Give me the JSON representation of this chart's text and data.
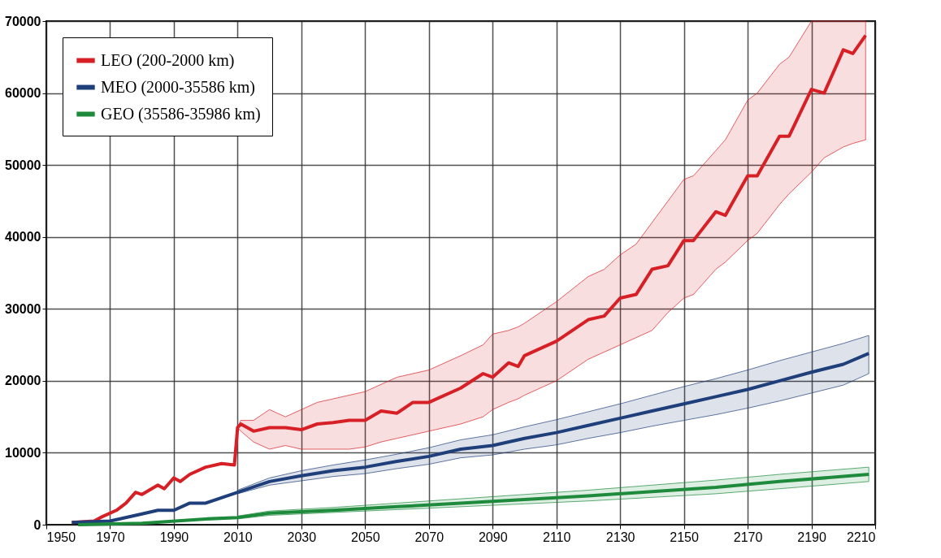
{
  "chart_data": {
    "type": "line",
    "xlim": [
      1950,
      2210
    ],
    "ylim": [
      0,
      70000
    ],
    "xticks": [
      1950,
      1970,
      1990,
      2010,
      2030,
      2050,
      2070,
      2090,
      2110,
      2130,
      2150,
      2170,
      2190,
      2210
    ],
    "yticks": [
      0,
      10000,
      20000,
      30000,
      40000,
      50000,
      60000,
      70000
    ],
    "grid": true,
    "legend": "top left",
    "line_style": "solid",
    "marker": "none",
    "series": [
      {
        "name": "LEO (200-2000 km)",
        "color": "#d71f26",
        "x": [
          1958,
          1965,
          1967,
          1972,
          1975,
          1978,
          1980,
          1985,
          1987,
          1990,
          1992,
          1995,
          2000,
          2005,
          2009,
          2010,
          2011,
          2015,
          2020,
          2025,
          2030,
          2035,
          2040,
          2045,
          2050,
          2055,
          2060,
          2065,
          2070,
          2080,
          2087,
          2090,
          2095,
          2098,
          2100,
          2110,
          2120,
          2125,
          2130,
          2135,
          2140,
          2145,
          2150,
          2153,
          2160,
          2163,
          2170,
          2173,
          2180,
          2183,
          2190,
          2194,
          2200,
          2203,
          2207
        ],
        "values": [
          300,
          500,
          1000,
          2000,
          3000,
          4500,
          4200,
          5500,
          5000,
          6500,
          6000,
          7000,
          8000,
          8500,
          8300,
          13500,
          14000,
          13000,
          13500,
          13500,
          13200,
          14000,
          14200,
          14500,
          14500,
          15800,
          15500,
          17000,
          17000,
          19000,
          21000,
          20500,
          22500,
          22000,
          23500,
          25500,
          28500,
          29000,
          31500,
          32000,
          35500,
          36000,
          39500,
          39500,
          43500,
          43000,
          48500,
          48500,
          54000,
          54000,
          60500,
          60000,
          66000,
          65500,
          68000
        ],
        "upper": [
          null,
          null,
          null,
          null,
          null,
          null,
          null,
          null,
          null,
          null,
          null,
          null,
          null,
          null,
          null,
          13500,
          14500,
          14500,
          16000,
          15000,
          16000,
          17000,
          17500,
          18000,
          18500,
          19500,
          20500,
          21000,
          21500,
          23500,
          25000,
          26500,
          27000,
          27500,
          28000,
          31000,
          34500,
          35500,
          37500,
          39000,
          42000,
          45000,
          48000,
          48500,
          52000,
          53500,
          59000,
          60000,
          64000,
          65000,
          70000,
          70000,
          70000,
          70000,
          70000
        ],
        "lower": [
          null,
          null,
          null,
          null,
          null,
          null,
          null,
          null,
          null,
          null,
          null,
          null,
          null,
          null,
          null,
          13500,
          13000,
          11500,
          10500,
          11000,
          10500,
          10500,
          10500,
          10500,
          10800,
          11500,
          12000,
          12500,
          13000,
          14000,
          15000,
          16000,
          17000,
          17500,
          18000,
          20000,
          23000,
          24000,
          25000,
          26000,
          27000,
          29500,
          31500,
          32000,
          35500,
          36500,
          39500,
          40500,
          44500,
          46000,
          49000,
          51000,
          52500,
          53000,
          53500
        ]
      },
      {
        "name": "MEO (2000-35586 km)",
        "color": "#1f3f7a",
        "x": [
          1958,
          1970,
          1980,
          1985,
          1990,
          1995,
          2000,
          2010,
          2020,
          2030,
          2040,
          2050,
          2060,
          2070,
          2080,
          2090,
          2100,
          2110,
          2120,
          2130,
          2140,
          2150,
          2160,
          2170,
          2180,
          2190,
          2200,
          2208
        ],
        "values": [
          300,
          500,
          1500,
          2000,
          2000,
          3000,
          3000,
          4500,
          6000,
          6800,
          7500,
          8000,
          8800,
          9500,
          10500,
          11000,
          12000,
          12800,
          13800,
          14800,
          15800,
          16800,
          17800,
          18800,
          20000,
          21200,
          22300,
          23800
        ],
        "upper": [
          null,
          null,
          null,
          null,
          null,
          null,
          null,
          4800,
          6500,
          7500,
          8300,
          9000,
          9800,
          10700,
          11800,
          12500,
          13600,
          14600,
          15700,
          16800,
          18000,
          19200,
          20300,
          21500,
          22800,
          24000,
          25200,
          26300
        ],
        "lower": [
          null,
          null,
          null,
          null,
          null,
          null,
          null,
          4300,
          5500,
          6100,
          6700,
          7100,
          7800,
          8400,
          9300,
          9700,
          10500,
          11100,
          12000,
          12800,
          13700,
          14500,
          15300,
          16200,
          17200,
          18300,
          19400,
          21000
        ]
      },
      {
        "name": "GEO (35586-35986 km)",
        "color": "#1e8a3c",
        "x": [
          1960,
          1980,
          2000,
          2010,
          2020,
          2040,
          2060,
          2080,
          2100,
          2120,
          2140,
          2160,
          2180,
          2208
        ],
        "values": [
          0,
          200,
          800,
          1000,
          1600,
          2000,
          2500,
          3000,
          3500,
          4000,
          4600,
          5200,
          6000,
          7000
        ],
        "upper": [
          null,
          null,
          null,
          1200,
          1900,
          2400,
          3000,
          3600,
          4200,
          4800,
          5500,
          6200,
          7000,
          8000
        ],
        "lower": [
          null,
          null,
          null,
          800,
          1300,
          1700,
          2100,
          2500,
          2900,
          3300,
          3800,
          4300,
          5000,
          6000
        ]
      }
    ]
  }
}
